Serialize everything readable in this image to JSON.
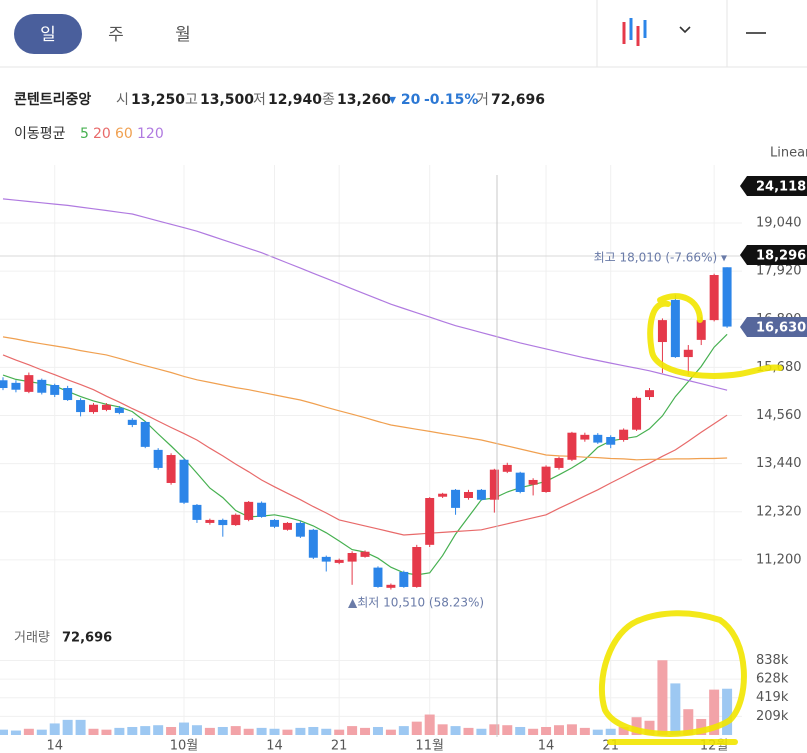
{
  "tabs": [
    "일",
    "주",
    "월"
  ],
  "summary": {
    "name": "콘텐트리중앙",
    "open_label": "시",
    "open": "13,250",
    "high_label": "고",
    "high": "13,500",
    "low_label": "저",
    "low": "12,940",
    "close_label": "종",
    "close": "13,260",
    "change": "▾ 20",
    "change_pct": "-0.15%",
    "volume_label": "거",
    "volume": "72,696"
  },
  "ma_title": "이동평균",
  "scale_mode": "Linear",
  "price_tags": [
    "24,118",
    "18,296",
    "16,630"
  ],
  "chart_data": {
    "type": "candlestick",
    "categories": [
      null,
      null,
      null,
      null,
      "14",
      null,
      null,
      null,
      null,
      null,
      null,
      null,
      null,
      null,
      "10월",
      null,
      null,
      null,
      null,
      null,
      null,
      "14",
      null,
      null,
      null,
      null,
      "21",
      null,
      null,
      null,
      null,
      null,
      null,
      "11월",
      null,
      null,
      null,
      null,
      null,
      null,
      null,
      null,
      "14",
      null,
      null,
      null,
      null,
      "21",
      null,
      null,
      null,
      null,
      null,
      null,
      null,
      "12월",
      null
    ],
    "open": [
      15380,
      15320,
      15110,
      15390,
      15270,
      15200,
      14920,
      14640,
      14690,
      14740,
      14460,
      14410,
      13760,
      12990,
      13530,
      12480,
      12060,
      12130,
      12010,
      12130,
      12530,
      12130,
      11900,
      12060,
      11900,
      11270,
      11130,
      11160,
      11270,
      11020,
      10550,
      10920,
      10570,
      11550,
      12670,
      12830,
      12640,
      12830,
      12600,
      13250,
      13230,
      12950,
      12780,
      13340,
      13530,
      14000,
      14110,
      14060,
      13990,
      14230,
      14990,
      16270,
      17250,
      15920,
      16320,
      16780,
      18010
    ],
    "high": [
      15450,
      15380,
      15560,
      15420,
      15300,
      15250,
      14960,
      14850,
      14850,
      14780,
      14500,
      14430,
      13800,
      13680,
      13560,
      12500,
      12160,
      12160,
      12280,
      12570,
      12560,
      12150,
      12080,
      12100,
      11920,
      11300,
      11230,
      11400,
      11420,
      11050,
      10650,
      10950,
      11550,
      12660,
      12760,
      12850,
      12830,
      12850,
      13320,
      13460,
      13250,
      13100,
      13400,
      13600,
      14180,
      14160,
      14150,
      14100,
      14260,
      15000,
      15200,
      16820,
      17370,
      16200,
      16850,
      17860,
      18010
    ],
    "low": [
      15150,
      15100,
      15080,
      15050,
      14990,
      14900,
      14540,
      14600,
      14660,
      14590,
      14290,
      13800,
      13300,
      12950,
      12500,
      12060,
      12020,
      11740,
      11990,
      12100,
      12180,
      11940,
      11880,
      11710,
      11220,
      10930,
      11100,
      10620,
      11250,
      10550,
      10510,
      10550,
      10550,
      11500,
      12640,
      12250,
      12600,
      12580,
      12300,
      13220,
      12750,
      12700,
      12760,
      13300,
      13500,
      13950,
      13900,
      13800,
      13950,
      14200,
      14920,
      15550,
      15900,
      15500,
      16200,
      16750,
      16600
    ],
    "close": [
      15200,
      15160,
      15500,
      15090,
      15040,
      14920,
      14640,
      14810,
      14810,
      14620,
      14340,
      13830,
      13340,
      13640,
      12530,
      12130,
      12130,
      12010,
      12250,
      12550,
      12200,
      11970,
      12060,
      11740,
      11250,
      11160,
      11200,
      11360,
      11390,
      10570,
      10620,
      10570,
      11500,
      12640,
      12740,
      12410,
      12780,
      12600,
      13300,
      13410,
      12780,
      13060,
      13370,
      13570,
      14160,
      14110,
      13930,
      13880,
      14230,
      14970,
      15150,
      16780,
      15920,
      16090,
      16780,
      17830,
      16630
    ],
    "volume": [
      60000,
      50000,
      70000,
      60000,
      130000,
      170000,
      170000,
      70000,
      60000,
      80000,
      90000,
      100000,
      110000,
      90000,
      140000,
      110000,
      80000,
      90000,
      100000,
      70000,
      80000,
      70000,
      60000,
      80000,
      90000,
      70000,
      60000,
      100000,
      80000,
      90000,
      60000,
      100000,
      150000,
      230000,
      120000,
      100000,
      80000,
      70000,
      120000,
      110000,
      90000,
      70000,
      90000,
      110000,
      120000,
      80000,
      60000,
      70000,
      90000,
      200000,
      160000,
      840000,
      580000,
      290000,
      180000,
      510000,
      520000
    ],
    "moving_averages": [
      {
        "name": "5",
        "color": "#46b050",
        "values": [
          15500,
          15400,
          15350,
          15300,
          15250,
          15120,
          15000,
          14900,
          14820,
          14760,
          14650,
          14420,
          14130,
          13850,
          13560,
          13220,
          12870,
          12650,
          12350,
          12200,
          12220,
          12250,
          12190,
          12110,
          11990,
          11830,
          11640,
          11440,
          11380,
          11240,
          11030,
          10900,
          10850,
          10900,
          11300,
          11800,
          12200,
          12600,
          12640,
          12780,
          12880,
          12950,
          13030,
          13180,
          13340,
          13530,
          13820,
          13970,
          14020,
          14070,
          14250,
          14550,
          15000,
          15350,
          15700,
          16150,
          16450
        ]
      },
      {
        "name": "20",
        "color": "#e86a6a",
        "values": [
          15970,
          15850,
          15740,
          15620,
          15510,
          15390,
          15280,
          15160,
          15010,
          14870,
          14720,
          14580,
          14430,
          14280,
          14140,
          13990,
          13800,
          13620,
          13430,
          13250,
          13060,
          12900,
          12750,
          12600,
          12440,
          12290,
          12130,
          12060,
          11990,
          11920,
          11850,
          11780,
          11800,
          11820,
          11840,
          11860,
          11880,
          11900,
          11970,
          12040,
          12110,
          12180,
          12250,
          12400,
          12540,
          12690,
          12830,
          12990,
          13140,
          13300,
          13450,
          13610,
          13760,
          13960,
          14170,
          14370,
          14570
        ]
      },
      {
        "name": "60",
        "color": "#f0a050",
        "values": [
          16390,
          16340,
          16280,
          16230,
          16180,
          16130,
          16070,
          16020,
          15970,
          15890,
          15800,
          15720,
          15640,
          15560,
          15470,
          15390,
          15330,
          15270,
          15210,
          15160,
          15100,
          15040,
          14980,
          14920,
          14840,
          14750,
          14670,
          14590,
          14510,
          14420,
          14340,
          14290,
          14240,
          14190,
          14140,
          14090,
          14040,
          13990,
          13920,
          13850,
          13780,
          13710,
          13640,
          13620,
          13610,
          13590,
          13580,
          13560,
          13550,
          13530,
          13540,
          13540,
          13550,
          13550,
          13560,
          13560,
          13570
        ]
      },
      {
        "name": "120",
        "color": "#b07ae0",
        "values": [
          19600,
          19570,
          19540,
          19510,
          19480,
          19450,
          19410,
          19370,
          19330,
          19290,
          19250,
          19170,
          19090,
          19010,
          18930,
          18850,
          18750,
          18650,
          18550,
          18450,
          18350,
          18230,
          18110,
          17990,
          17870,
          17750,
          17630,
          17510,
          17390,
          17270,
          17150,
          17050,
          16950,
          16850,
          16750,
          16650,
          16570,
          16490,
          16410,
          16330,
          16250,
          16180,
          16110,
          16040,
          15970,
          15900,
          15840,
          15780,
          15720,
          15660,
          15600,
          15525,
          15450,
          15375,
          15300,
          15225,
          15150
        ]
      }
    ],
    "up_color": "#e5394a",
    "down_color": "#2c85e8",
    "volume_up_color": "#f2a3a8",
    "volume_down_color": "#9dc8f2",
    "ylim": [
      10150,
      20390
    ],
    "yticks": [
      {
        "value": 11200,
        "label": "11,200"
      },
      {
        "value": 12320,
        "label": "12,320"
      },
      {
        "value": 13440,
        "label": "13,440"
      },
      {
        "value": 14560,
        "label": "14,560"
      },
      {
        "value": 15680,
        "label": "15,680"
      },
      {
        "value": 16800,
        "label": "16,800"
      },
      {
        "value": 17920,
        "label": "17,920"
      },
      {
        "value": 19040,
        "label": "19,040"
      }
    ],
    "volume_title": "거래량",
    "volume_value": "72,696",
    "volume_ylim": [
      0,
      1270000
    ],
    "volume_yticks": [
      {
        "value": 209000,
        "label": "209k"
      },
      {
        "value": 419000,
        "label": "419k"
      },
      {
        "value": 628000,
        "label": "628k"
      },
      {
        "value": 838000,
        "label": "838k"
      }
    ],
    "annotations": [
      "최고 18,010 (-7.66%) ▾",
      "▲최저 10,510 (58.23%)"
    ],
    "grid": true
  }
}
